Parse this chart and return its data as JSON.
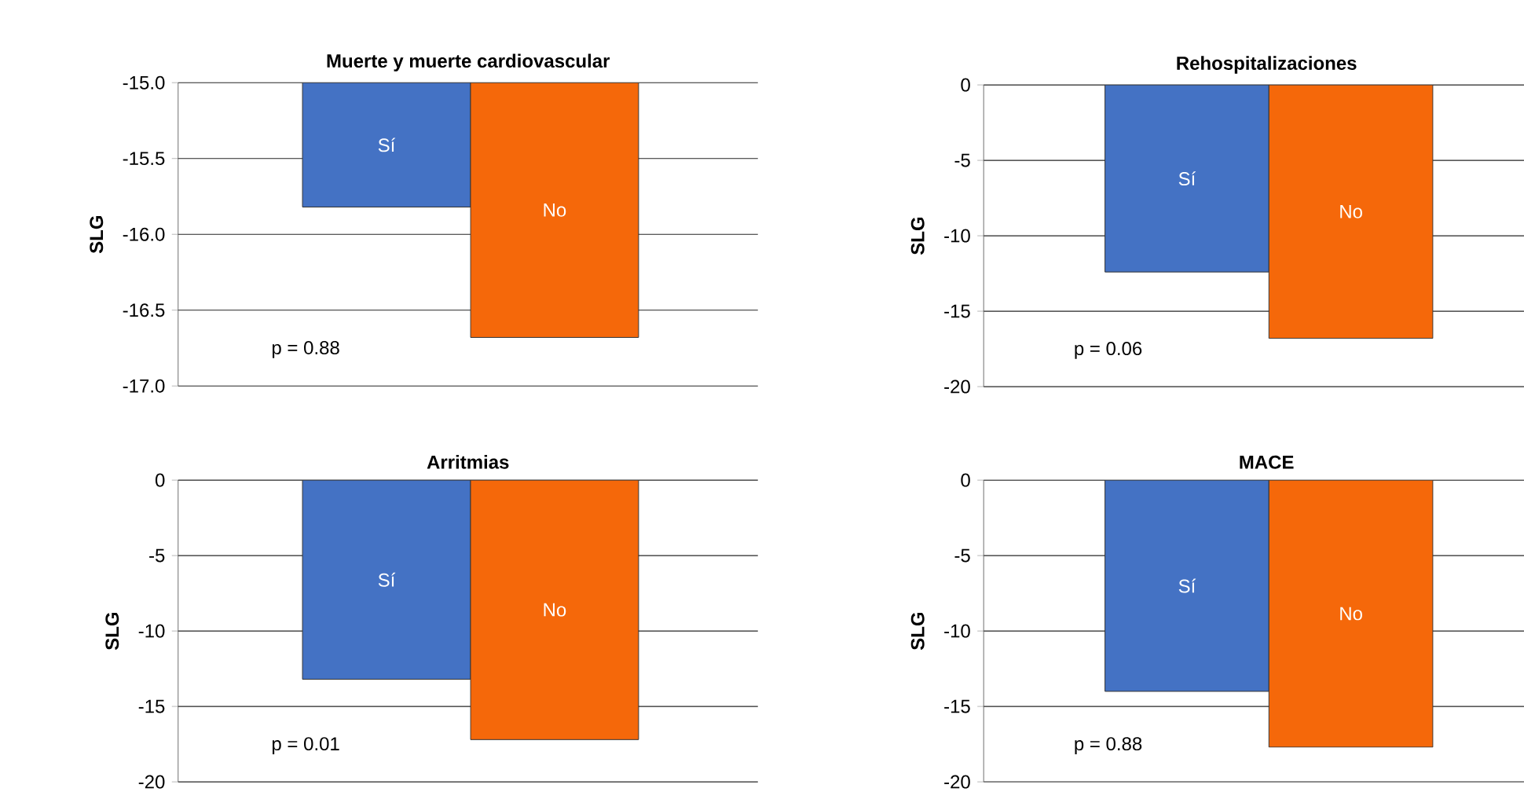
{
  "chart_data": [
    {
      "type": "bar",
      "title": "Muerte y muerte cardiovascular",
      "ylabel": "SLG",
      "categories": [
        "Sí",
        "No"
      ],
      "values": [
        -15.82,
        -16.68
      ],
      "colors": [
        "#4472c4",
        "#f5680a"
      ],
      "ylim": [
        -17,
        -15
      ],
      "yticks": [
        {
          "value": -17,
          "label": "-17.0"
        },
        {
          "value": -16.5,
          "label": "-16.5"
        },
        {
          "value": -16,
          "label": "-16.0"
        },
        {
          "value": -15.5,
          "label": "-15.5"
        },
        {
          "value": -15,
          "label": "-15.0"
        }
      ],
      "grid": "y",
      "annotations": [
        "p = 0.88"
      ]
    },
    {
      "type": "bar",
      "title": "Rehospitalizaciones",
      "ylabel": "SLG",
      "categories": [
        "Sí",
        "No"
      ],
      "values": [
        -12.4,
        -16.8
      ],
      "colors": [
        "#4472c4",
        "#f5680a"
      ],
      "ylim": [
        -20,
        0
      ],
      "yticks": [
        -20,
        -15,
        -10,
        -5,
        0
      ],
      "grid": "y",
      "annotations": [
        "p = 0.06"
      ]
    },
    {
      "type": "bar",
      "title": "Arritmias",
      "ylabel": "SLG",
      "categories": [
        "Sí",
        "No"
      ],
      "values": [
        -13.2,
        -17.2
      ],
      "colors": [
        "#4472c4",
        "#f5680a"
      ],
      "ylim": [
        -20,
        0
      ],
      "yticks": [
        -20,
        -15,
        -10,
        -5,
        0
      ],
      "grid": "y",
      "annotations": [
        "p = 0.01"
      ]
    },
    {
      "type": "bar",
      "title": "MACE",
      "ylabel": "SLG",
      "categories": [
        "Sí",
        "No"
      ],
      "values": [
        -14.0,
        -17.7
      ],
      "colors": [
        "#4472c4",
        "#f5680a"
      ],
      "ylim": [
        -20,
        0
      ],
      "yticks": [
        -20,
        -15,
        -10,
        -5,
        0
      ],
      "grid": "y",
      "annotations": [
        "p = 0.88"
      ]
    }
  ]
}
